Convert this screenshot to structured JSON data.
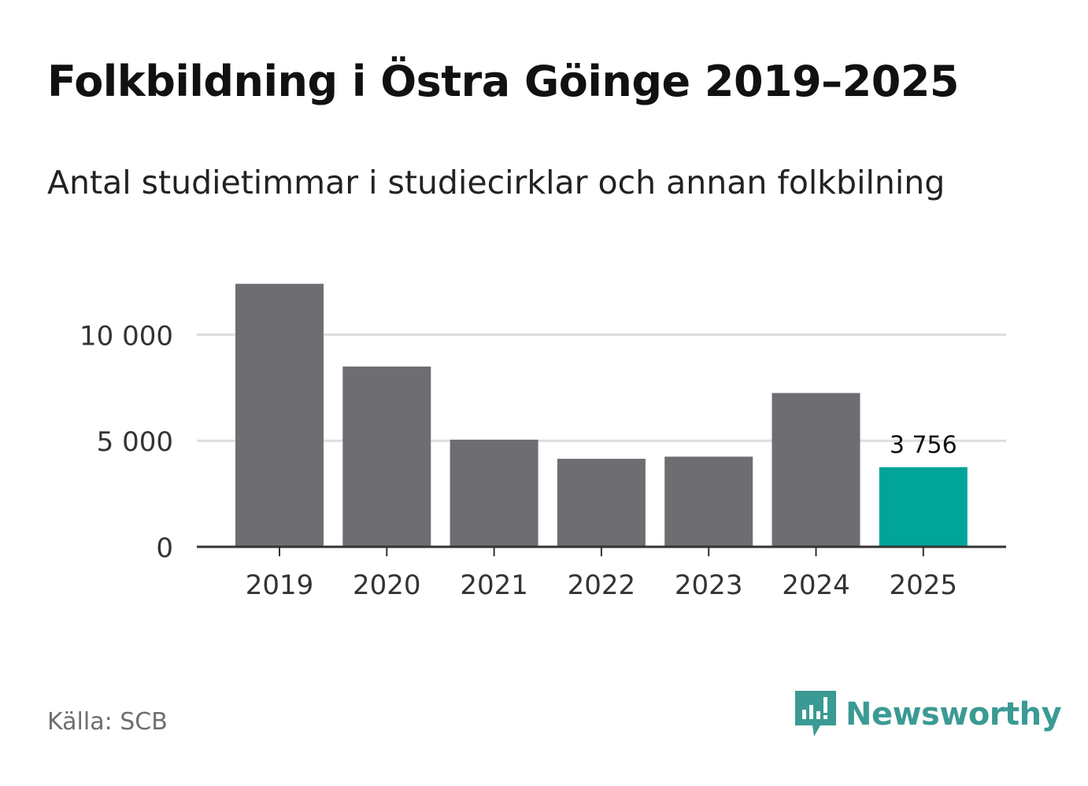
{
  "header": {
    "title": "Folkbildning i Östra Göinge 2019–2025",
    "subtitle": "Antal studietimmar i studiecirklar och annan folkbilning"
  },
  "footer": {
    "source": "Källa: SCB",
    "brand": "Newsworthy"
  },
  "colors": {
    "bar": "#6e6d72",
    "highlight": "#00a499",
    "grid": "#dddddd",
    "axis": "#333333",
    "brand": "#3b9a94"
  },
  "chart_data": {
    "type": "bar",
    "title": "Folkbildning i Östra Göinge 2019–2025",
    "subtitle": "Antal studietimmar i studiecirklar och annan folkbilning",
    "xlabel": "",
    "ylabel": "",
    "categories": [
      "2019",
      "2020",
      "2021",
      "2022",
      "2023",
      "2024",
      "2025"
    ],
    "values": [
      12400,
      8500,
      5050,
      4150,
      4250,
      7250,
      3756
    ],
    "ylim": [
      0,
      12500
    ],
    "yticks": [
      0,
      5000,
      10000
    ],
    "ytick_labels": [
      "0",
      "5 000",
      "10 000"
    ],
    "highlight_index": 6,
    "data_labels": [
      {
        "index": 6,
        "text": "3 756"
      }
    ],
    "grid": true,
    "legend": "none"
  }
}
